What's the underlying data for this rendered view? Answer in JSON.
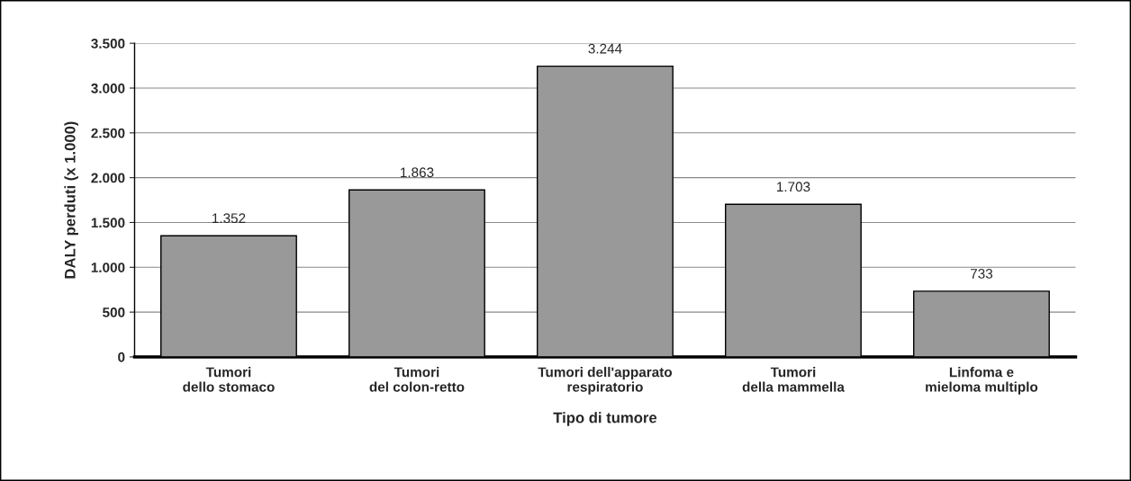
{
  "chart_data": {
    "type": "bar",
    "categories": [
      "Tumori\ndello stomaco",
      "Tumori\ndel colon-retto",
      "Tumori dell'apparato\nrespiratorio",
      "Tumori\ndella mammella",
      "Linfoma e\nmieloma multiplo"
    ],
    "values": [
      1352,
      1863,
      3244,
      1703,
      733
    ],
    "value_labels": [
      "1.352",
      "1.863",
      "3.244",
      "1.703",
      "733"
    ],
    "color": "#999999",
    "xlabel": "Tipo di tumore",
    "ylabel": "DALY perduti (x 1.000)",
    "ylim": [
      0,
      3500
    ],
    "yticks": [
      0,
      500,
      {
        "value": 1000,
        "label": "1.000"
      },
      {
        "value": 1500,
        "label": "1.500"
      },
      {
        "value": 2000,
        "label": "2.000"
      },
      {
        "value": 2500,
        "label": "2.500"
      },
      {
        "value": 3000,
        "label": "3.000"
      },
      {
        "value": 3500,
        "label": "3.500"
      }
    ],
    "grid": "y",
    "legend": false
  }
}
